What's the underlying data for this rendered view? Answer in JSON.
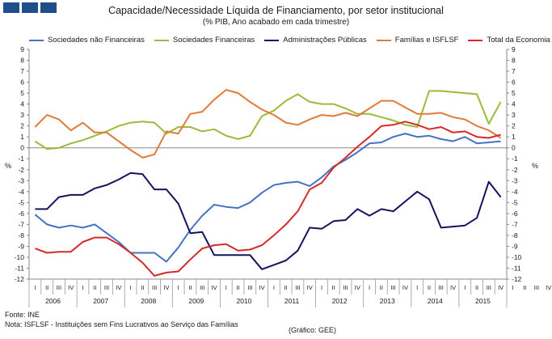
{
  "header": {
    "title": "Capacidade/Necessidade Líquida de Financiamento, por setor institucional",
    "subtitle": "(% PIB, Ano acabado em cada trimestre)"
  },
  "footer": {
    "source": "Fonte: INE",
    "note": "Nota: ISFLSF - Instituições sem Fins Lucrativos ao Serviço das Famílias",
    "credit": "(Gráfico: GEE)"
  },
  "chart_data": {
    "type": "line",
    "y_unit_left": "%",
    "y_unit_right": "%",
    "ylim": [
      -12,
      9
    ],
    "y_ticks": [
      9,
      8,
      7,
      6,
      5,
      4,
      3,
      2,
      1,
      0,
      -1,
      -2,
      -3,
      -4,
      -5,
      -6,
      -7,
      -8,
      -9,
      -10,
      -11,
      -12
    ],
    "y_tick_labels": [
      "9",
      "8",
      "7",
      "6",
      "5",
      "4",
      "3",
      "2",
      "1",
      "0",
      "-1",
      "-2",
      "-3",
      "-4",
      "-5",
      "-6",
      "-7",
      "-8",
      "-9",
      "-10",
      "-11",
      "-12"
    ],
    "quarter_labels": [
      "I",
      "II",
      "III",
      "IV",
      "I",
      "II",
      "III",
      "IV",
      "I",
      "II",
      "III",
      "IV",
      "I",
      "II",
      "III",
      "IV",
      "I",
      "II",
      "III",
      "IV",
      "I",
      "II",
      "III",
      "IV",
      "I",
      "II",
      "III",
      "IV",
      "I",
      "II",
      "III",
      "IV",
      "I",
      "II",
      "III",
      "IV",
      "I",
      "II",
      "III",
      "IV",
      "I",
      "II",
      "III",
      "IV"
    ],
    "years": [
      "2006",
      "2007",
      "2008",
      "2009",
      "2010",
      "2011",
      "2012",
      "2013",
      "2014",
      "2015"
    ],
    "x": [
      "2006 I",
      "2006 II",
      "2006 III",
      "2006 IV",
      "2007 I",
      "2007 II",
      "2007 III",
      "2007 IV",
      "2008 I",
      "2008 II",
      "2008 III",
      "2008 IV",
      "2009 I",
      "2009 II",
      "2009 III",
      "2009 IV",
      "2010 I",
      "2010 II",
      "2010 III",
      "2010 IV",
      "2011 I",
      "2011 II",
      "2011 III",
      "2011 IV",
      "2012 I",
      "2012 II",
      "2012 III",
      "2012 IV",
      "2013 I",
      "2013 II",
      "2013 III",
      "2013 IV",
      "2014 I",
      "2014 II",
      "2014 III",
      "2014 IV",
      "2015 I",
      "2015 II",
      "2015 III",
      "2015 IV"
    ],
    "grid": false,
    "legend_position": "top",
    "series": [
      {
        "name": "Sociedades não Financeiras",
        "color": "#4472c4",
        "values": [
          -6.1,
          -7.0,
          -7.3,
          -7.1,
          -7.3,
          -7.0,
          -7.8,
          -8.6,
          -9.6,
          -9.6,
          -9.6,
          -10.4,
          -9.1,
          -7.5,
          -6.2,
          -5.2,
          -5.4,
          -5.5,
          -5.0,
          -4.1,
          -3.4,
          -3.2,
          -3.1,
          -3.5,
          -2.7,
          -1.7,
          -1.1,
          -0.4,
          0.4,
          0.5,
          1.0,
          1.3,
          1.0,
          1.1,
          0.8,
          0.6,
          1.0,
          0.4,
          0.5,
          0.6
        ]
      },
      {
        "name": "Sociedades Financeiras",
        "color": "#9bbb3b",
        "values": [
          0.6,
          -0.1,
          0.0,
          0.4,
          0.7,
          1.1,
          1.5,
          2.0,
          2.3,
          2.4,
          2.3,
          1.3,
          1.9,
          1.9,
          1.5,
          1.7,
          1.1,
          0.8,
          1.1,
          2.9,
          3.4,
          4.3,
          4.9,
          4.2,
          4.0,
          4.0,
          3.6,
          3.1,
          3.1,
          2.8,
          2.5,
          2.1,
          1.9,
          5.2,
          5.2,
          5.1,
          5.0,
          4.9,
          2.2,
          4.2
        ]
      },
      {
        "name": "Administrações Públicas",
        "color": "#14145e",
        "values": [
          -5.6,
          -5.6,
          -4.5,
          -4.3,
          -4.3,
          -3.7,
          -3.4,
          -2.9,
          -2.3,
          -2.4,
          -3.8,
          -3.8,
          -5.1,
          -7.8,
          -7.7,
          -9.8,
          -9.8,
          -9.8,
          -9.8,
          -11.1,
          -10.7,
          -10.3,
          -9.4,
          -7.3,
          -7.4,
          -6.7,
          -6.6,
          -5.6,
          -6.2,
          -5.6,
          -5.8,
          -4.9,
          -4.0,
          -4.7,
          -7.3,
          -7.2,
          -7.1,
          -6.4,
          -3.1,
          -4.5
        ]
      },
      {
        "name": "Famílias e ISFLSF",
        "color": "#e07b39",
        "values": [
          1.9,
          3.0,
          2.6,
          1.6,
          2.3,
          1.4,
          1.4,
          0.6,
          -0.2,
          -0.9,
          -0.6,
          1.5,
          1.3,
          3.1,
          3.3,
          4.4,
          5.3,
          5.0,
          4.2,
          3.5,
          3.0,
          2.3,
          2.1,
          2.6,
          3.0,
          2.9,
          3.2,
          2.9,
          3.6,
          4.3,
          4.3,
          3.7,
          3.1,
          3.1,
          3.2,
          2.8,
          2.6,
          2.0,
          1.6,
          0.9
        ]
      },
      {
        "name": "Total da Economia",
        "color": "#d62a2a",
        "values": [
          -9.2,
          -9.6,
          -9.5,
          -9.5,
          -8.6,
          -8.2,
          -8.2,
          -8.8,
          -9.6,
          -10.5,
          -11.7,
          -11.4,
          -11.3,
          -10.2,
          -9.2,
          -8.9,
          -8.8,
          -9.4,
          -9.3,
          -8.9,
          -8.0,
          -7.0,
          -5.8,
          -3.8,
          -3.2,
          -1.8,
          -0.9,
          0.1,
          1.0,
          2.0,
          2.1,
          2.4,
          2.1,
          1.7,
          1.9,
          1.4,
          1.5,
          1.0,
          0.9,
          1.2
        ]
      }
    ]
  }
}
